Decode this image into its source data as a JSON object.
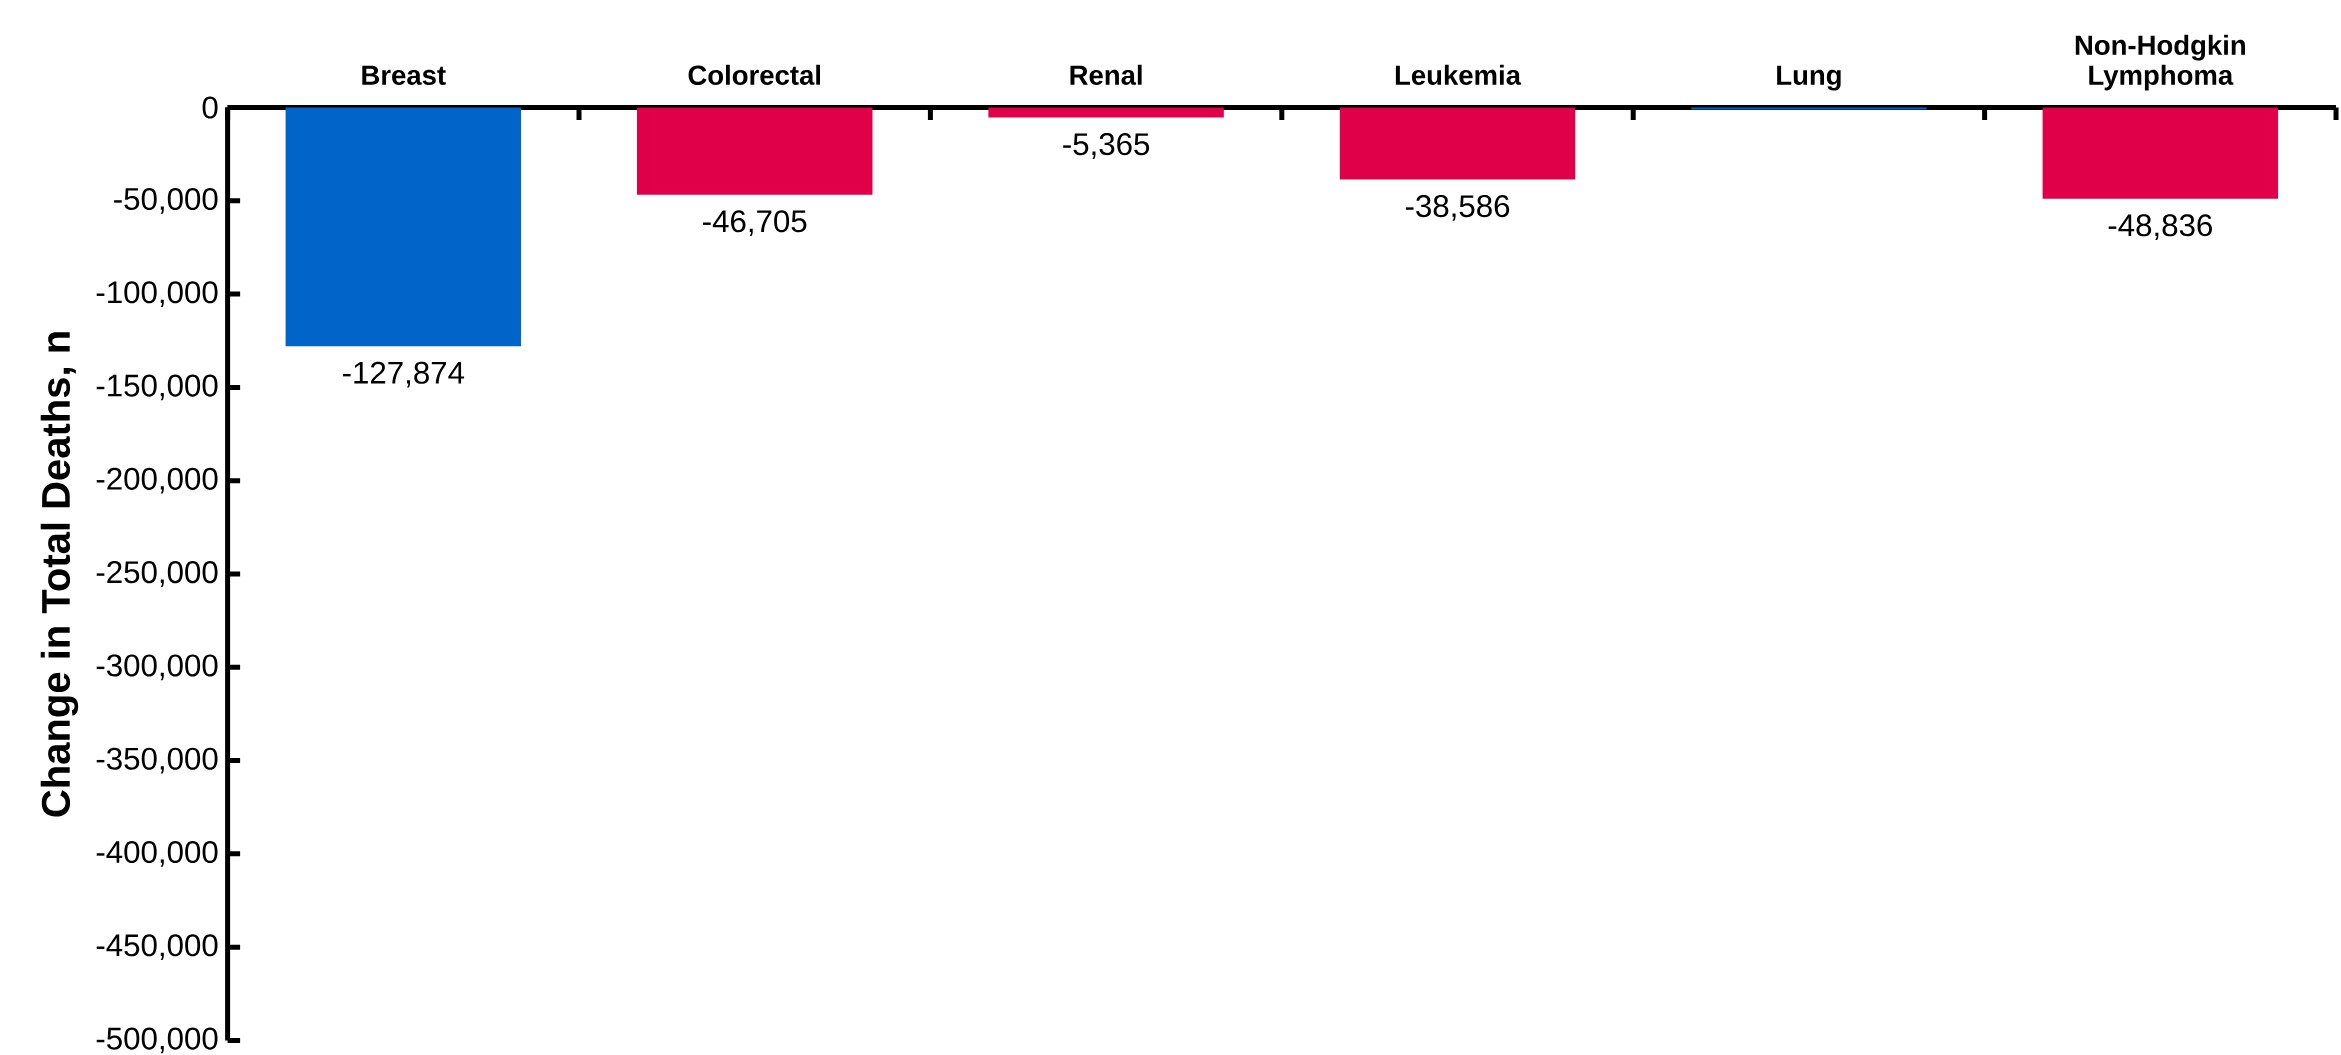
{
  "chart_data": {
    "type": "bar",
    "ylabel": "Change in Total Deaths, n",
    "categories": [
      "Breast",
      "Colorectal",
      "Renal",
      "Leukemia",
      "Lung",
      "Non-Hodgkin Lymphoma"
    ],
    "values": [
      -127874,
      -46705,
      -5365,
      -38586,
      -1000,
      -48836
    ],
    "value_labels": [
      "-127,874",
      "-46,705",
      "-5,365",
      "-38,586",
      null,
      "-48,836"
    ],
    "colors": [
      "#0064c8",
      "#e0004a",
      "#e0004a",
      "#e0004a",
      "#0064c8",
      "#e0004a"
    ],
    "ylim": [
      -500000,
      0
    ],
    "yticks": [
      {
        "value": -500000,
        "label": "-500,000"
      },
      {
        "value": -450000,
        "label": "-450,000"
      },
      {
        "value": -400000,
        "label": "-400,000"
      },
      {
        "value": -350000,
        "label": "-350,000"
      },
      {
        "value": -300000,
        "label": "-300,000"
      },
      {
        "value": -250000,
        "label": "-250,000"
      },
      {
        "value": -200000,
        "label": "-200,000"
      },
      {
        "value": -150000,
        "label": "-150,000"
      },
      {
        "value": -100000,
        "label": "-100,000"
      },
      {
        "value": -50000,
        "label": "-50,000"
      },
      {
        "value": 0,
        "label": "0"
      }
    ],
    "tick_labels": true
  }
}
